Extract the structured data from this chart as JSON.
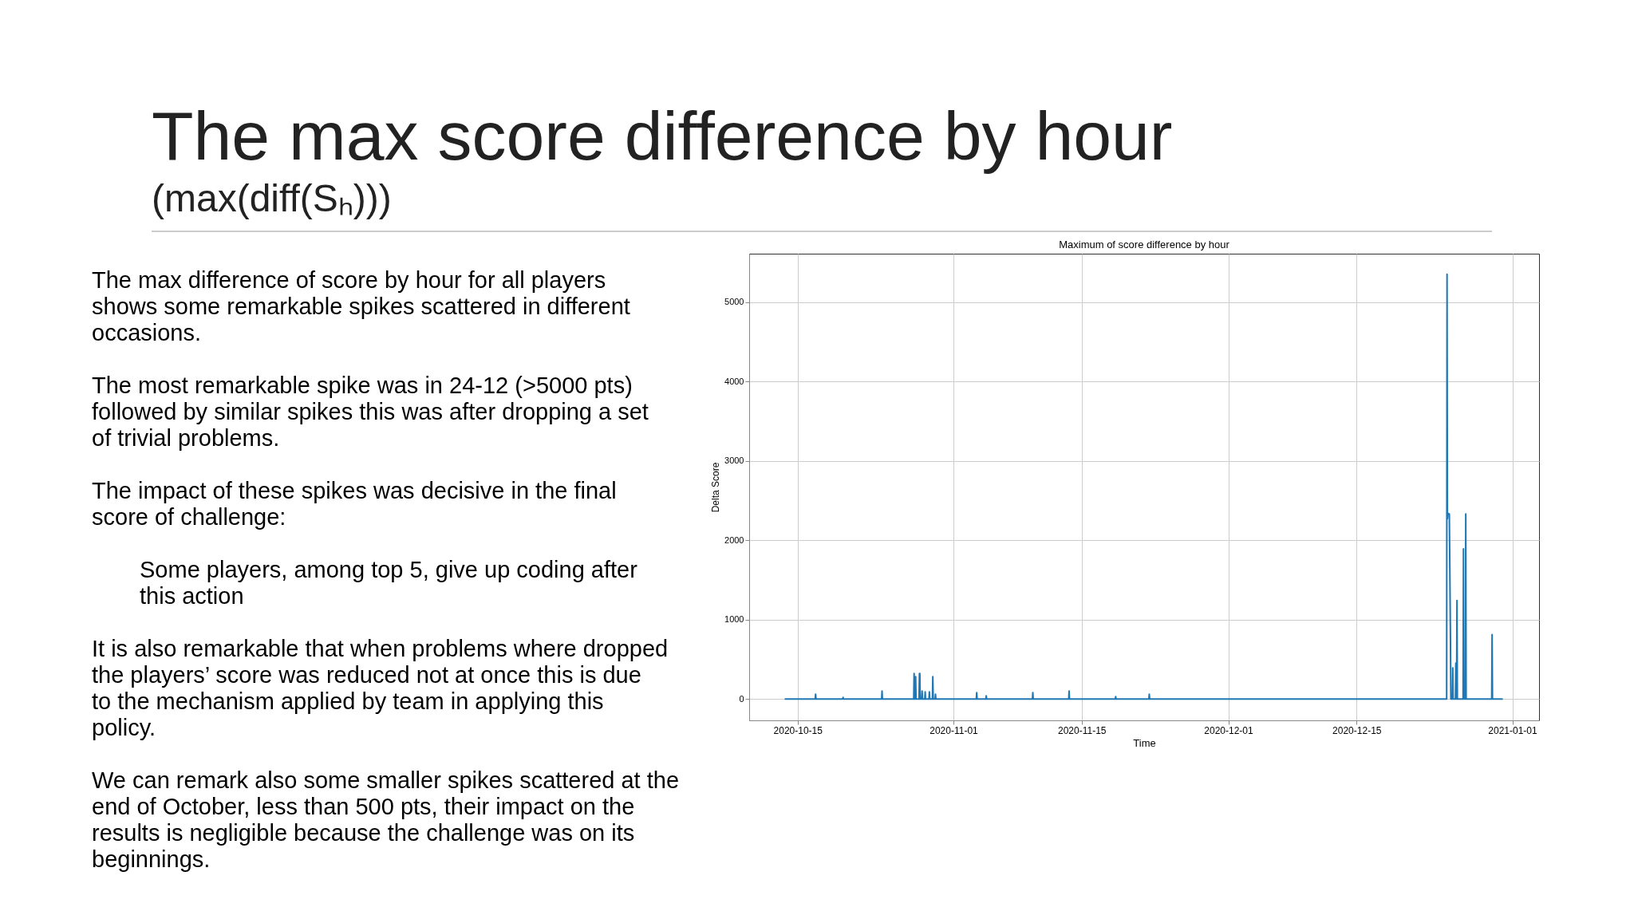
{
  "chart_data": {
    "type": "line",
    "title": "Maximum of score difference by hour",
    "xlabel": "Time",
    "ylabel": "Delta Score",
    "annotations": [
      "The max score difference by hour",
      "(max(diff(Sₕ)))",
      "The max difference of score by hour  for all players shows some remarkable spikes scattered in different occasions.",
      "The most  remarkable spike was in 24-12 (>5000 pts) followed by similar spikes this was after dropping a set of trivial problems.",
      "The impact of these spikes was decisive in the final score of challenge:",
      "Some players, among top 5, give up coding after this action",
      "It is also remarkable that when problems where dropped the players’ score was reduced not at once this is due to the mechanism applied by team in applying this policy.",
      "We can remark also some smaller spikes scattered at the end of October, less than 500 pts, their impact on the results is negligible because the challenge was on its beginnings."
    ],
    "x": [
      "2020-10-13T14:00",
      "2020-10-16T22:00",
      "2020-10-16T23:00",
      "2020-10-17T00:00",
      "2020-10-19T22:00",
      "2020-10-19T23:00",
      "2020-10-20T00:00",
      "2020-10-24T04:00",
      "2020-10-24T05:00",
      "2020-10-24T06:00",
      "2020-10-27T16:00",
      "2020-10-27T17:00",
      "2020-10-27T18:00",
      "2020-10-27T20:00",
      "2020-10-27T21:00",
      "2020-10-27T22:00",
      "2020-10-28T06:00",
      "2020-10-28T07:00",
      "2020-10-28T08:00",
      "2020-10-28T09:00",
      "2020-10-28T13:00",
      "2020-10-28T14:00",
      "2020-10-28T15:00",
      "2020-10-28T21:00",
      "2020-10-28T22:00",
      "2020-10-28T23:00",
      "2020-10-29T08:00",
      "2020-10-29T09:00",
      "2020-10-29T10:00",
      "2020-10-29T17:00",
      "2020-10-29T18:00",
      "2020-10-29T19:00",
      "2020-10-30T00:00",
      "2020-10-30T01:00",
      "2020-10-30T02:00",
      "2020-11-03T12:00",
      "2020-11-03T13:00",
      "2020-11-03T14:00",
      "2020-11-04T13:00",
      "2020-11-04T14:00",
      "2020-11-04T15:00",
      "2020-11-09T15:00",
      "2020-11-09T16:00",
      "2020-11-09T17:00",
      "2020-11-13T14:00",
      "2020-11-13T15:00",
      "2020-11-13T16:00",
      "2020-11-18T16:00",
      "2020-11-18T17:00",
      "2020-11-18T18:00",
      "2020-11-22T08:00",
      "2020-11-22T09:00",
      "2020-11-22T10:00",
      "2020-12-24T20:00",
      "2020-12-24T21:00",
      "2020-12-24T22:00",
      "2020-12-24T23:00",
      "2020-12-25T03:00",
      "2020-12-25T06:00",
      "2020-12-25T07:00",
      "2020-12-25T11:00",
      "2020-12-25T12:00",
      "2020-12-25T13:00",
      "2020-12-25T19:00",
      "2020-12-25T20:00",
      "2020-12-25T21:00",
      "2020-12-25T22:00",
      "2020-12-25T23:00",
      "2020-12-26T00:00",
      "2020-12-26T15:00",
      "2020-12-26T16:00",
      "2020-12-26T17:00",
      "2020-12-26T21:00",
      "2020-12-26T22:00",
      "2020-12-26T23:00",
      "2020-12-29T18:00",
      "2020-12-29T19:00",
      "2020-12-29T20:00",
      "2020-12-30T23:00"
    ],
    "series": [
      {
        "color": "#1f77b4",
        "values": [
          0,
          0,
          60,
          0,
          0,
          20,
          0,
          0,
          100,
          0,
          0,
          320,
          0,
          0,
          280,
          0,
          0,
          320,
          320,
          0,
          0,
          100,
          0,
          0,
          90,
          0,
          0,
          90,
          0,
          0,
          280,
          0,
          0,
          60,
          0,
          0,
          80,
          0,
          0,
          40,
          0,
          0,
          80,
          0,
          0,
          100,
          0,
          0,
          30,
          0,
          0,
          60,
          0,
          0,
          5350,
          2270,
          2340,
          2330,
          700,
          0,
          0,
          390,
          0,
          0,
          450,
          450,
          0,
          1240,
          0,
          0,
          1890,
          0,
          0,
          2330,
          0,
          0,
          810,
          0,
          0
        ]
      }
    ],
    "xlim": [
      "2020-10-09T17:00",
      "2021-01-03T22:00"
    ],
    "ylim": [
      -270,
      5610
    ],
    "xticks": [
      {
        "value": "2020-10-15",
        "label": "2020-10-15"
      },
      {
        "value": "2020-11-01",
        "label": "2020-11-01"
      },
      {
        "value": "2020-11-15",
        "label": "2020-11-15"
      },
      {
        "value": "2020-12-01",
        "label": "2020-12-01"
      },
      {
        "value": "2020-12-15",
        "label": "2020-12-15"
      },
      {
        "value": "2021-01-01",
        "label": "2021-01-01"
      }
    ],
    "yticks": [
      0,
      1000,
      2000,
      3000,
      4000,
      5000
    ],
    "grid": true,
    "legend": false,
    "marker": "none",
    "line_style": "solid"
  }
}
